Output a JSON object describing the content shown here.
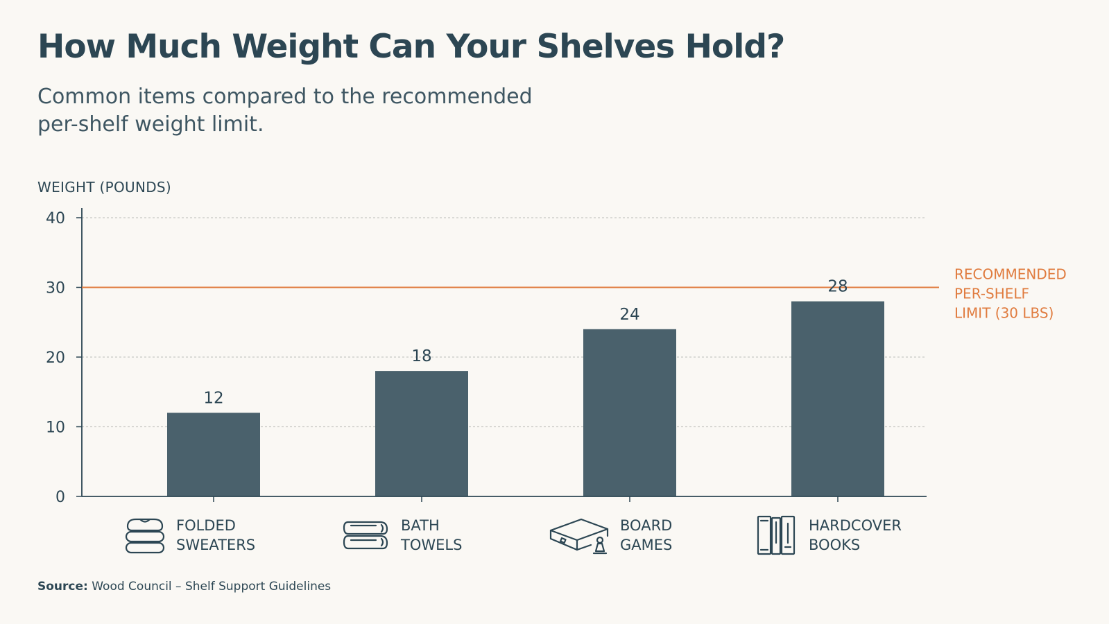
{
  "chart_data": {
    "type": "bar",
    "title": "How Much Weight Can Your Shelves Hold?",
    "subtitle": "Common items compared to the recommended per-shelf weight limit.",
    "ylabel": "WEIGHT (POUNDS)",
    "xlabel": "",
    "ylim": [
      0,
      40
    ],
    "yticks": [
      0,
      10,
      20,
      30,
      40
    ],
    "grid": true,
    "categories": [
      "FOLDED SWEATERS",
      "BATH TOWELS",
      "BOARD GAMES",
      "HARDCOVER BOOKS"
    ],
    "category_lines": [
      [
        "FOLDED",
        "SWEATERS"
      ],
      [
        "BATH",
        "TOWELS"
      ],
      [
        "BOARD",
        "GAMES"
      ],
      [
        "HARDCOVER",
        "BOOKS"
      ]
    ],
    "values": [
      12,
      18,
      24,
      28
    ],
    "data_labels": [
      "12",
      "18",
      "24",
      "28"
    ],
    "category_icons": [
      "folded-sweaters-icon",
      "bath-towels-icon",
      "board-game-icon",
      "hardcover-books-icon"
    ],
    "reference_line": {
      "value": 30,
      "label_lines": [
        "RECOMMENDED",
        "PER-SHELF",
        "LIMIT (30 LBS)"
      ]
    },
    "colors": {
      "bar": "#4a616c",
      "reference": "#e07b3e",
      "text": "#2c4653",
      "grid": "#c8c8c4",
      "background": "#faf8f4"
    }
  },
  "source": {
    "label": "Source:",
    "text": "Wood Council – Shelf Support Guidelines"
  }
}
